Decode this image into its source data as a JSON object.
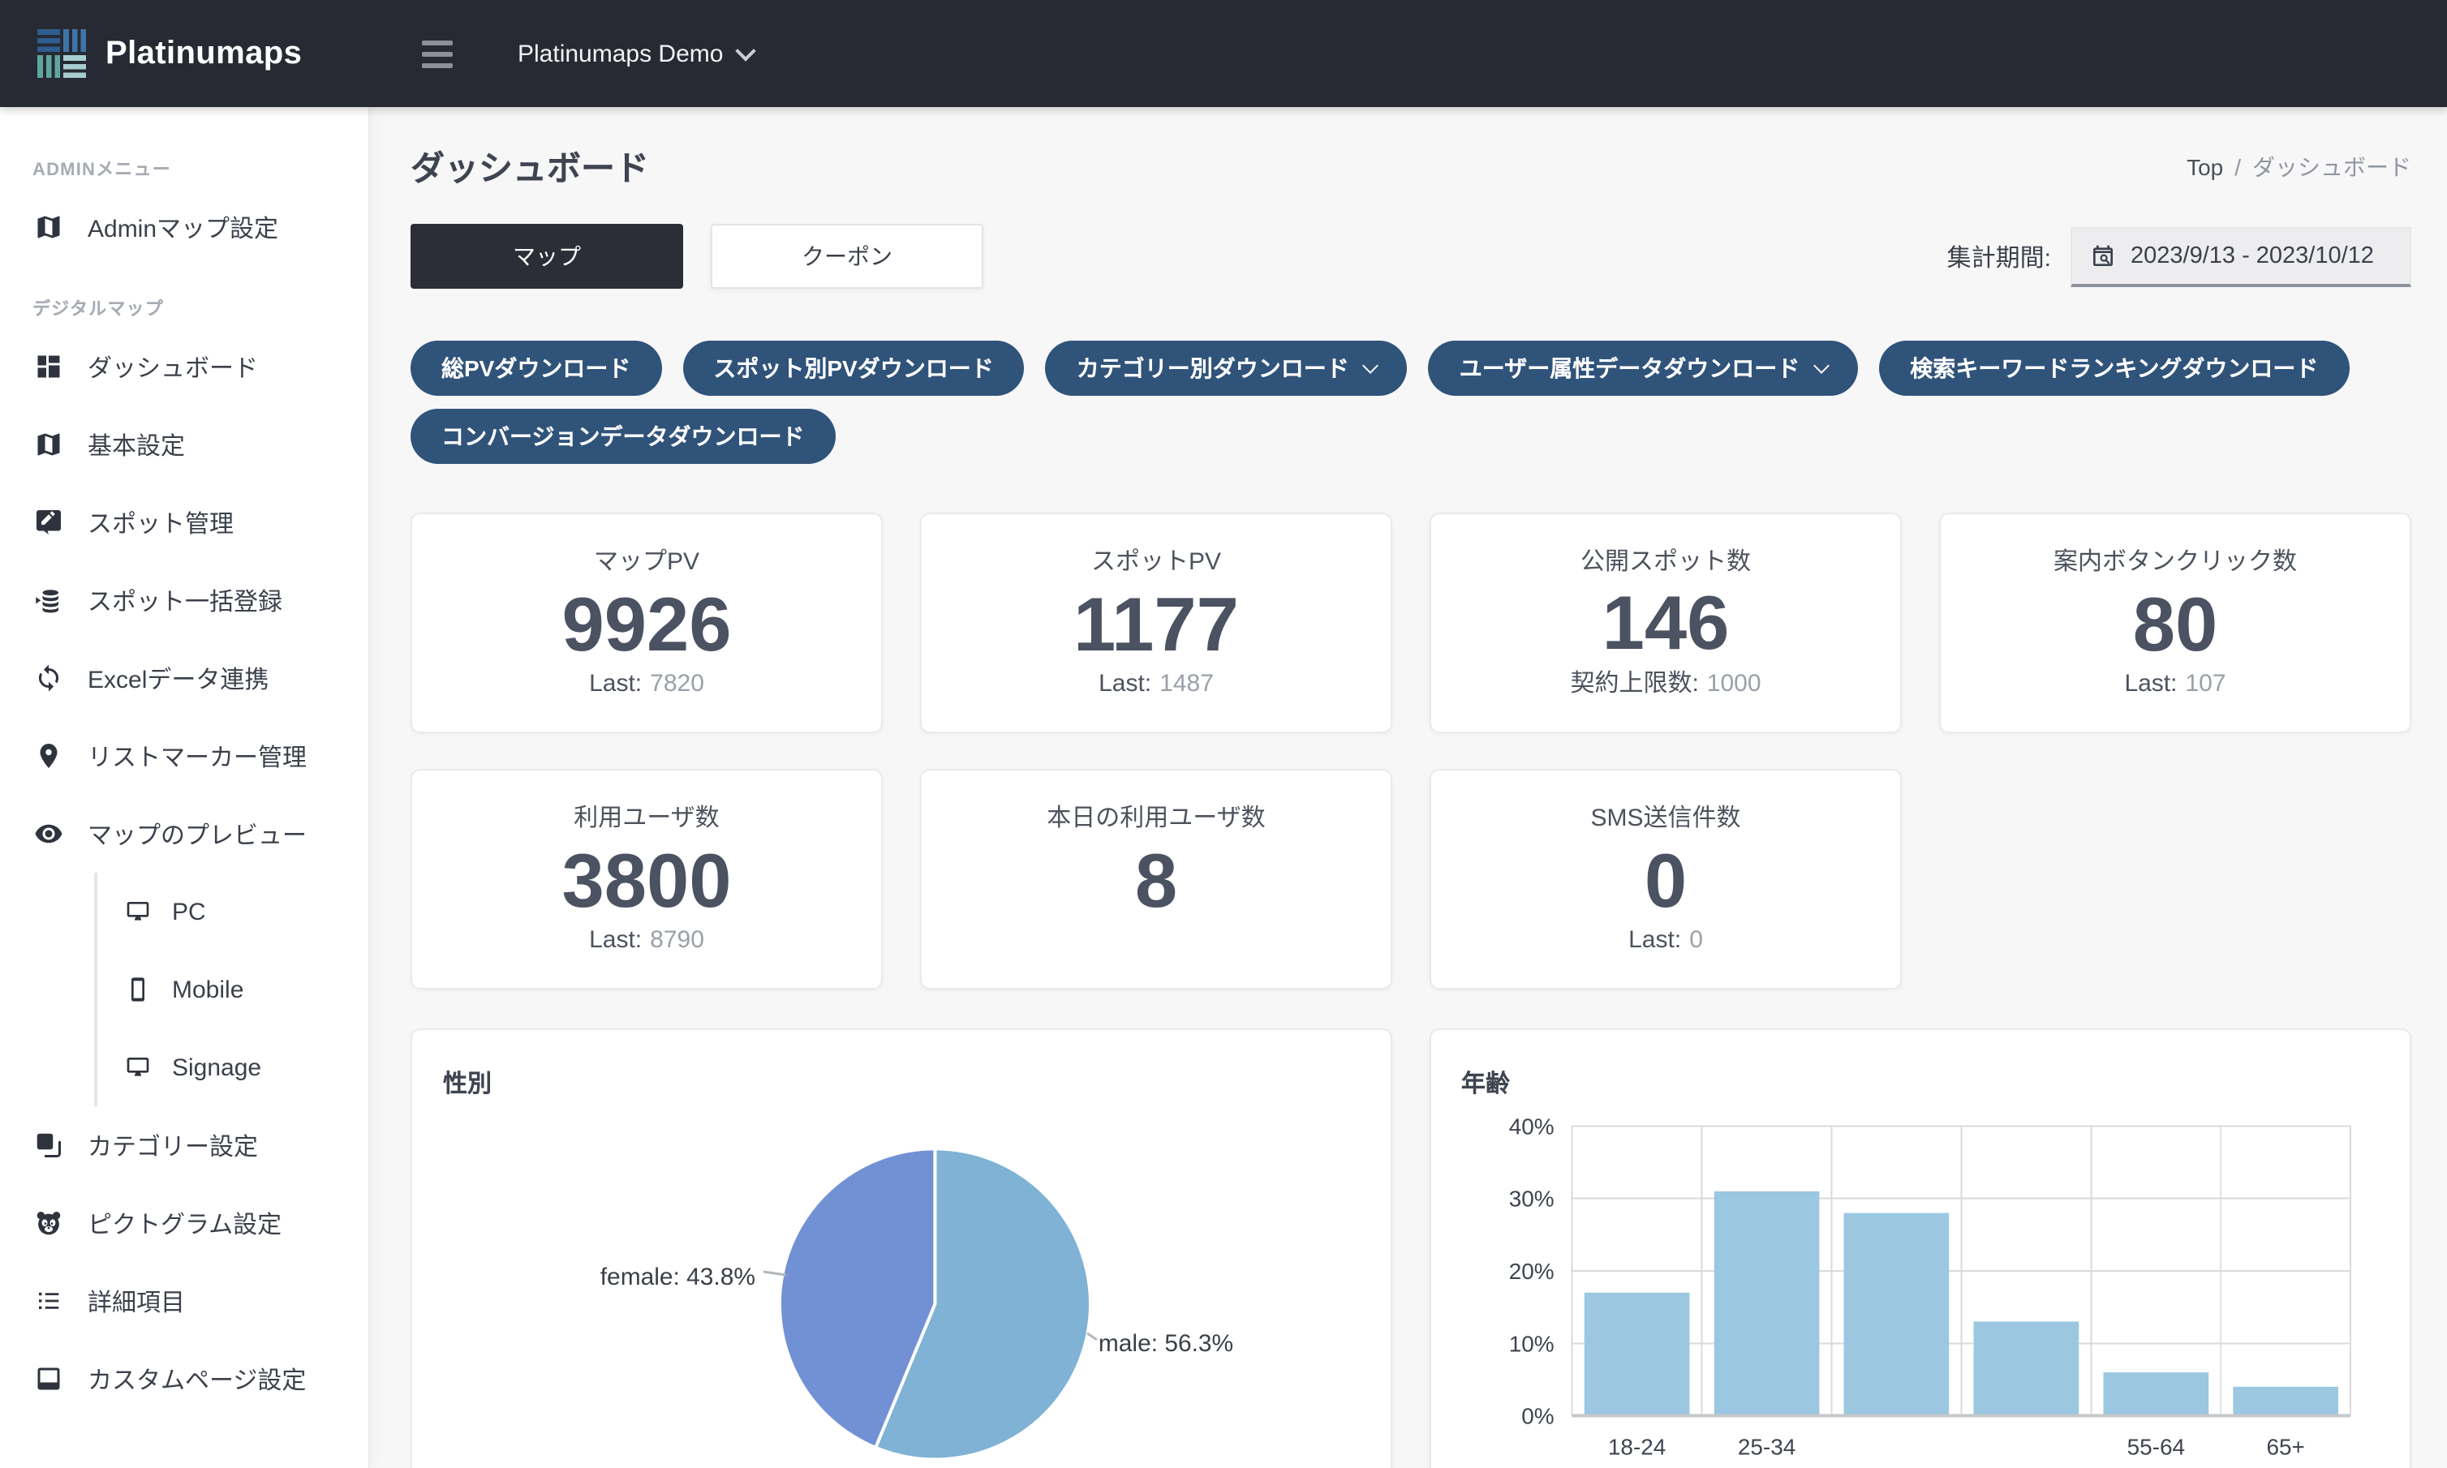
{
  "header": {
    "brand": "Platinumaps",
    "workspace": "Platinumaps Demo"
  },
  "sidebar": {
    "sections": [
      {
        "label": "ADMINメニュー",
        "items": [
          {
            "label": "Adminマップ設定",
            "icon": "map",
            "name": "admin-map-settings"
          }
        ]
      },
      {
        "label": "デジタルマップ",
        "items": [
          {
            "label": "ダッシュボード",
            "icon": "dashboard",
            "name": "dashboard"
          },
          {
            "label": "基本設定",
            "icon": "map",
            "name": "basic-settings"
          },
          {
            "label": "スポット管理",
            "icon": "edit",
            "name": "spot-management"
          },
          {
            "label": "スポット一括登録",
            "icon": "database",
            "name": "spot-bulk-register"
          },
          {
            "label": "Excelデータ連携",
            "icon": "sync",
            "name": "excel-data-sync"
          },
          {
            "label": "リストマーカー管理",
            "icon": "pin",
            "name": "list-marker-management"
          },
          {
            "label": "マップのプレビュー",
            "icon": "eye",
            "name": "map-preview",
            "children": [
              {
                "label": "PC",
                "icon": "monitor",
                "name": "pc"
              },
              {
                "label": "Mobile",
                "icon": "mobile",
                "name": "mobile"
              },
              {
                "label": "Signage",
                "icon": "monitor",
                "name": "signage"
              }
            ]
          },
          {
            "label": "カテゴリー設定",
            "icon": "layers",
            "name": "category-settings"
          },
          {
            "label": "ピクトグラム設定",
            "icon": "panda",
            "name": "pictogram-settings"
          },
          {
            "label": "詳細項目",
            "icon": "list",
            "name": "detail-items"
          },
          {
            "label": "カスタムページ設定",
            "icon": "page",
            "name": "custom-page-settings"
          }
        ]
      }
    ]
  },
  "page": {
    "title": "ダッシュボード",
    "breadcrumb_top": "Top",
    "breadcrumb_separator": "/",
    "breadcrumb_current": "ダッシュボード"
  },
  "tabs": [
    {
      "label": "マップ",
      "name": "map",
      "active": true
    },
    {
      "label": "クーポン",
      "name": "coupon",
      "active": false
    }
  ],
  "date_filter": {
    "label": "集計期間:",
    "value": "2023/9/13 - 2023/10/12"
  },
  "download_buttons": [
    {
      "label": "総PVダウンロード",
      "dropdown": false,
      "name": "total-pv-download"
    },
    {
      "label": "スポット別PVダウンロード",
      "dropdown": false,
      "name": "spot-pv-download"
    },
    {
      "label": "カテゴリー別ダウンロード",
      "dropdown": true,
      "name": "category-download"
    },
    {
      "label": "ユーザー属性データダウンロード",
      "dropdown": true,
      "name": "user-attribute-download"
    },
    {
      "label": "検索キーワードランキングダウンロード",
      "dropdown": false,
      "name": "search-keyword-ranking-download"
    },
    {
      "label": "コンバージョンデータダウンロード",
      "dropdown": false,
      "name": "conversion-download"
    }
  ],
  "stat_cards": {
    "row1": [
      {
        "title": "マップPV",
        "value": "9926",
        "sub_label": "Last:",
        "sub_value": "7820",
        "name": "map-pv"
      },
      {
        "title": "スポットPV",
        "value": "1177",
        "sub_label": "Last:",
        "sub_value": "1487",
        "name": "spot-pv"
      },
      {
        "title": "公開スポット数",
        "value": "146",
        "sub_label": "契約上限数:",
        "sub_value": "1000",
        "name": "published-spots"
      },
      {
        "title": "案内ボタンクリック数",
        "value": "80",
        "sub_label": "Last:",
        "sub_value": "107",
        "name": "guide-button-clicks"
      }
    ],
    "row2": [
      {
        "title": "利用ユーザ数",
        "value": "3800",
        "sub_label": "Last:",
        "sub_value": "8790",
        "name": "users"
      },
      {
        "title": "本日の利用ユーザ数",
        "value": "8",
        "sub_label": "",
        "sub_value": "",
        "name": "today-users"
      },
      {
        "title": "SMS送信件数",
        "value": "0",
        "sub_label": "Last:",
        "sub_value": "0",
        "name": "sms-sent"
      }
    ]
  },
  "chart_data": [
    {
      "type": "pie",
      "title": "性別",
      "labels": [
        "male",
        "female"
      ],
      "values": [
        56.3,
        43.8
      ],
      "colors": [
        "#7FB2D4",
        "#7291D5"
      ],
      "label_format": "name: value%",
      "legend_position": "none"
    },
    {
      "type": "bar",
      "title": "年齢",
      "categories": [
        "18-24",
        "25-34",
        "",
        "",
        "55-64",
        "65+"
      ],
      "values": [
        17,
        31,
        28,
        13,
        6,
        4
      ],
      "ylim": [
        0,
        40
      ],
      "yticks": [
        "40%",
        "30%",
        "20%",
        "10%",
        "0%"
      ],
      "bar_color": "#9BC7E1",
      "grid": true
    }
  ],
  "colors": {
    "header_bg": "#272A33",
    "accent_button": "#30537A",
    "tab_active_bg": "#2B2D37",
    "pie_male": "#7FB2D4",
    "pie_female": "#7291D5",
    "bar_fill": "#9BC7E1",
    "logo_stripes": [
      "#2E5D90",
      "#3F74AB",
      "#5FA6A1",
      "#A7CDD0"
    ]
  }
}
